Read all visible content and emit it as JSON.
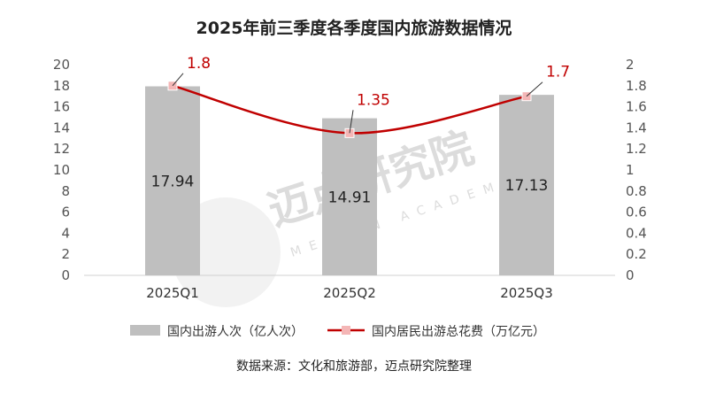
{
  "chart_data": {
    "type": "bar",
    "title": "2025年前三季度各季度国内旅游数据情况",
    "categories": [
      "2025Q1",
      "2025Q2",
      "2025Q3"
    ],
    "series": [
      {
        "name": "国内出游人次（亿人次）",
        "type": "bar",
        "axis": "left",
        "values": [
          17.94,
          14.91,
          17.13
        ],
        "labels": [
          "17.94",
          "14.91",
          "17.13"
        ],
        "color": "#bfbfbf"
      },
      {
        "name": "国内居民出游总花费（万亿元）",
        "type": "line",
        "axis": "right",
        "values": [
          1.8,
          1.35,
          1.7
        ],
        "labels": [
          "1.8",
          "1.35",
          "1.7"
        ],
        "color": "#c00000",
        "marker_color": "#f4b6b6"
      }
    ],
    "y_left": {
      "min": 0,
      "max": 20,
      "ticks": [
        "0",
        "2",
        "4",
        "6",
        "8",
        "10",
        "12",
        "14",
        "16",
        "18",
        "20"
      ]
    },
    "y_right": {
      "min": 0,
      "max": 2,
      "ticks": [
        "0",
        "0.2",
        "0.4",
        "0.6",
        "0.8",
        "1",
        "1.2",
        "1.4",
        "1.6",
        "1.8",
        "2"
      ]
    },
    "grid": false,
    "legend_position": "bottom",
    "source": "数据来源：文化和旅游部，迈点研究院整理"
  },
  "watermark": {
    "text": "迈点研究院",
    "subtext": "MEADIN ACADEMY"
  }
}
